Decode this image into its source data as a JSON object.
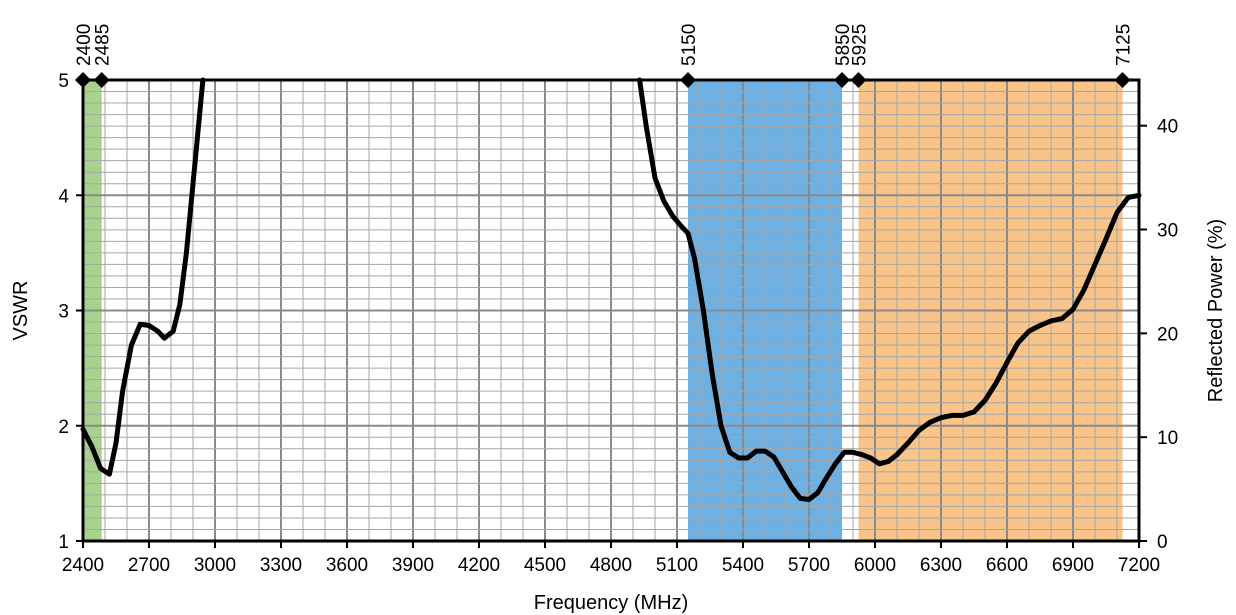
{
  "chart_data": {
    "type": "line",
    "xlabel": "Frequency (MHz)",
    "ylabel": "VSWR",
    "y2label": "Reflected Power (%)",
    "xlim": [
      2400,
      7200
    ],
    "ylim": [
      1,
      5
    ],
    "y2lim": [
      0,
      44.4
    ],
    "x_ticks": [
      2400,
      2700,
      3000,
      3300,
      3600,
      3900,
      4200,
      4500,
      4800,
      5100,
      5400,
      5700,
      6000,
      6300,
      6600,
      6900,
      7200
    ],
    "y_ticks": [
      1,
      2,
      3,
      4,
      5
    ],
    "y2_ticks": [
      0,
      10,
      20,
      30,
      40
    ],
    "grid": true,
    "band_markers": [
      2400,
      2485,
      5150,
      5850,
      5925,
      7125
    ],
    "bands": [
      {
        "from": 2400,
        "to": 2485,
        "color": "#a9d18e"
      },
      {
        "from": 5150,
        "to": 5850,
        "color": "#6fb0e2"
      },
      {
        "from": 5925,
        "to": 7125,
        "color": "#f8c489"
      }
    ],
    "series": [
      {
        "color": "#000000",
        "segments": [
          [
            [
              2400,
              1.97
            ],
            [
              2440,
              1.82
            ],
            [
              2480,
              1.63
            ],
            [
              2520,
              1.58
            ],
            [
              2550,
              1.85
            ],
            [
              2580,
              2.3
            ],
            [
              2620,
              2.7
            ],
            [
              2660,
              2.88
            ],
            [
              2700,
              2.87
            ],
            [
              2740,
              2.82
            ],
            [
              2770,
              2.76
            ],
            [
              2810,
              2.82
            ],
            [
              2840,
              3.05
            ],
            [
              2870,
              3.5
            ],
            [
              2900,
              4.1
            ],
            [
              2925,
              4.6
            ],
            [
              2945,
              5.0
            ]
          ],
          [
            [
              4930,
              5.0
            ],
            [
              4960,
              4.6
            ],
            [
              5000,
              4.15
            ],
            [
              5040,
              3.95
            ],
            [
              5080,
              3.82
            ],
            [
              5120,
              3.73
            ],
            [
              5150,
              3.67
            ],
            [
              5180,
              3.45
            ],
            [
              5220,
              3.0
            ],
            [
              5260,
              2.45
            ],
            [
              5300,
              2.0
            ],
            [
              5340,
              1.77
            ],
            [
              5380,
              1.72
            ],
            [
              5420,
              1.72
            ],
            [
              5460,
              1.78
            ],
            [
              5500,
              1.78
            ],
            [
              5540,
              1.73
            ],
            [
              5580,
              1.6
            ],
            [
              5620,
              1.47
            ],
            [
              5660,
              1.37
            ],
            [
              5700,
              1.36
            ],
            [
              5740,
              1.42
            ],
            [
              5780,
              1.55
            ],
            [
              5820,
              1.67
            ],
            [
              5860,
              1.77
            ],
            [
              5900,
              1.77
            ],
            [
              5940,
              1.75
            ],
            [
              5980,
              1.72
            ],
            [
              6020,
              1.67
            ],
            [
              6060,
              1.69
            ],
            [
              6100,
              1.75
            ],
            [
              6150,
              1.85
            ],
            [
              6200,
              1.96
            ],
            [
              6250,
              2.03
            ],
            [
              6300,
              2.07
            ],
            [
              6350,
              2.09
            ],
            [
              6400,
              2.09
            ],
            [
              6450,
              2.12
            ],
            [
              6500,
              2.22
            ],
            [
              6550,
              2.37
            ],
            [
              6600,
              2.55
            ],
            [
              6650,
              2.72
            ],
            [
              6700,
              2.82
            ],
            [
              6750,
              2.87
            ],
            [
              6800,
              2.91
            ],
            [
              6850,
              2.93
            ],
            [
              6900,
              3.01
            ],
            [
              6950,
              3.18
            ],
            [
              7000,
              3.4
            ],
            [
              7050,
              3.62
            ],
            [
              7100,
              3.85
            ],
            [
              7150,
              3.98
            ],
            [
              7200,
              4.0
            ]
          ]
        ]
      }
    ]
  }
}
